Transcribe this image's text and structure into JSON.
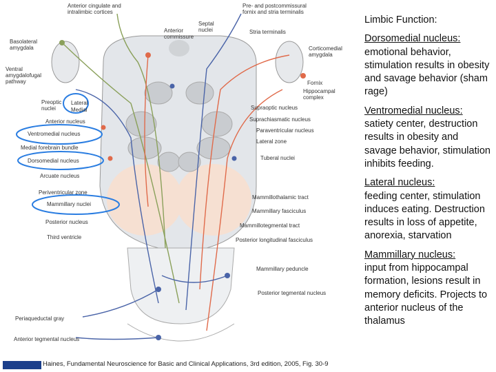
{
  "diagram": {
    "labels": [
      "Anterior cingulate and intralimbic cortices",
      "Septal nuclei",
      "Anterior commissure",
      "Pre- and postcommissural fornix and stria terminalis",
      "Stria terminalis",
      "Basolateral amygdala",
      "Corticomedial amygdala",
      "Ventral amygdalofugal pathway",
      "Fornix",
      "Hippocampal complex",
      "Preoptic nuclei",
      "Lateral",
      "Medial",
      "Supraoptic nucleus",
      "Anterior nucleus",
      "Suprachiasmatic nucleus",
      "Ventromedial nucleus",
      "Paraventricular nucleus",
      "Medial forebrain bundle",
      "Lateral zone",
      "Dorsomedial nucleus",
      "Tuberal nuclei",
      "Arcuate nucleus",
      "Periventricular zone",
      "Mammillothalamic tract",
      "Mammillary nuclei",
      "Mammillary fasciculus",
      "Posterior nucleus",
      "Mammillotegmental tract",
      "Third ventricle",
      "Posterior longitudinal fasciculus",
      "Mammillary peduncle",
      "Posterior tegmental nucleus",
      "Periaqueductal gray",
      "Anterior tegmental nucleus"
    ],
    "citation": "Haines, Fundamental Neuroscience for Basic and Clinical Applications, 3rd edition, 2005, Fig. 30-9"
  },
  "notes": {
    "title": "Limbic Function:",
    "sections": [
      {
        "term": "Dorsomedial nucleus:",
        "text": "emotional behavior, stimulation results in obesity and savage behavior (sham rage)"
      },
      {
        "term": "Ventromedial nucleus:",
        "text": "satiety center, destruction results in obesity and savage behavior, stimulation inhibits feeding."
      },
      {
        "term": "Lateral nucleus:",
        "text": "feeding center, stimulation induces eating. Destruction results in loss of appetite, anorexia, starvation"
      },
      {
        "term": "Mammillary nucleus:",
        "text": "input from hippocampal formation, lesions result in memory deficits. Projects to anterior nucleus of the thalamus"
      }
    ]
  }
}
